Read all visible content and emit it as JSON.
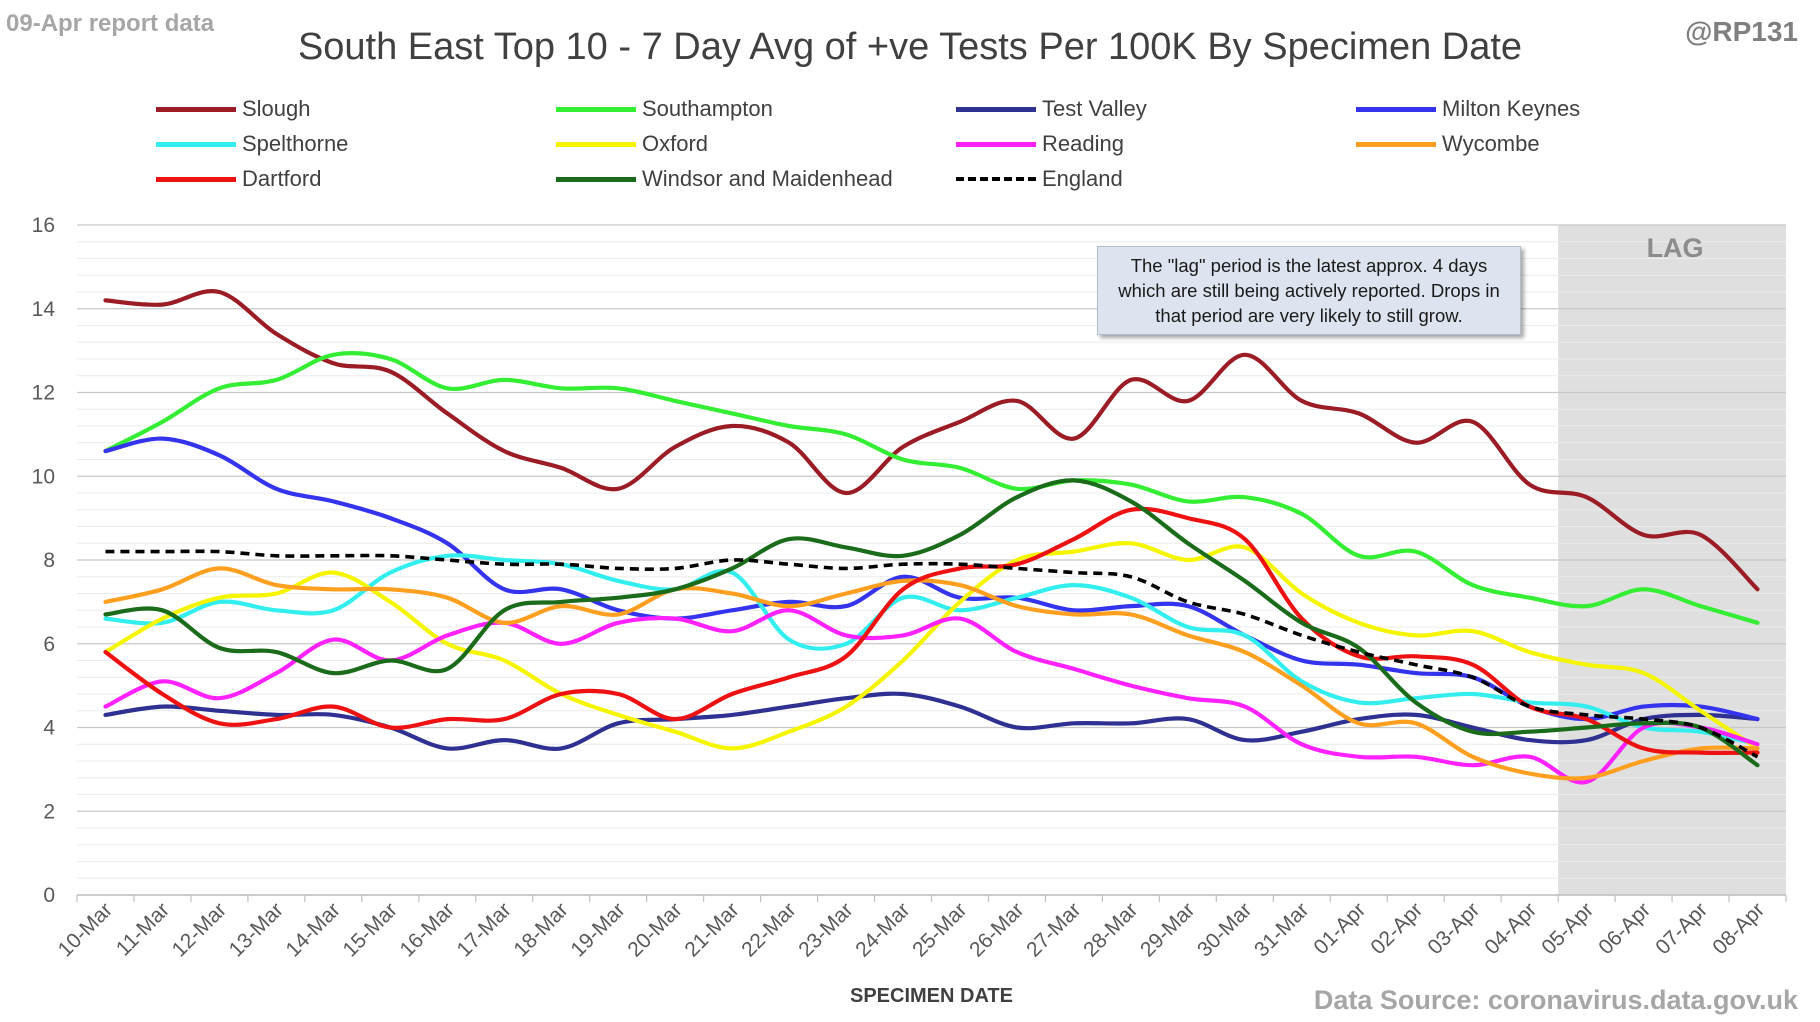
{
  "header": {
    "report_label": "09-Apr report data",
    "handle": "@RP131",
    "source": "Data Source: coronavirus.data.gov.uk"
  },
  "annotation": "The \"lag\" period is the latest approx. 4 days which are still being actively reported.  Drops in that period are very likely to still grow.",
  "chart_data": {
    "type": "line",
    "title": "South East Top 10 - 7 Day Avg of +ve Tests Per 100K By Specimen Date",
    "xlabel": "SPECIMEN DATE",
    "ylabel": "",
    "ylim": [
      0,
      16
    ],
    "yticks": [
      0,
      2,
      4,
      6,
      8,
      10,
      12,
      14,
      16
    ],
    "grid": true,
    "legend_position": "top",
    "lag_band": {
      "label": "LAG",
      "from": "05-Apr",
      "to": "08-Apr"
    },
    "x": [
      "10-Mar",
      "11-Mar",
      "12-Mar",
      "13-Mar",
      "14-Mar",
      "15-Mar",
      "16-Mar",
      "17-Mar",
      "18-Mar",
      "19-Mar",
      "20-Mar",
      "21-Mar",
      "22-Mar",
      "23-Mar",
      "24-Mar",
      "25-Mar",
      "26-Mar",
      "27-Mar",
      "28-Mar",
      "29-Mar",
      "30-Mar",
      "31-Mar",
      "01-Apr",
      "02-Apr",
      "03-Apr",
      "04-Apr",
      "05-Apr",
      "06-Apr",
      "07-Apr",
      "08-Apr"
    ],
    "series": [
      {
        "name": "Slough",
        "color": "#9b1c24",
        "dashed": false,
        "values": [
          14.2,
          14.1,
          14.4,
          13.4,
          12.7,
          12.5,
          11.5,
          10.6,
          10.2,
          9.7,
          10.7,
          11.2,
          10.8,
          9.6,
          10.7,
          11.3,
          11.8,
          10.9,
          12.3,
          11.8,
          12.9,
          11.8,
          11.5,
          10.8,
          11.3,
          9.8,
          9.5,
          8.6,
          8.6,
          7.3
        ]
      },
      {
        "name": "Southampton",
        "color": "#33ee33",
        "dashed": false,
        "values": [
          10.6,
          11.3,
          12.1,
          12.3,
          12.9,
          12.8,
          12.1,
          12.3,
          12.1,
          12.1,
          11.8,
          11.5,
          11.2,
          11.0,
          10.4,
          10.2,
          9.7,
          9.9,
          9.8,
          9.4,
          9.5,
          9.1,
          8.1,
          8.2,
          7.4,
          7.1,
          6.9,
          7.3,
          6.9,
          6.5
        ]
      },
      {
        "name": "Test Valley",
        "color": "#2e3192",
        "dashed": false,
        "values": [
          4.3,
          4.5,
          4.4,
          4.3,
          4.3,
          4.0,
          3.5,
          3.7,
          3.5,
          4.1,
          4.2,
          4.3,
          4.5,
          4.7,
          4.8,
          4.5,
          4.0,
          4.1,
          4.1,
          4.2,
          3.7,
          3.9,
          4.2,
          4.3,
          4.0,
          3.7,
          3.7,
          4.2,
          4.3,
          4.2
        ]
      },
      {
        "name": "Milton Keynes",
        "color": "#3434ee",
        "dashed": false,
        "values": [
          10.6,
          10.9,
          10.5,
          9.7,
          9.4,
          9.0,
          8.4,
          7.3,
          7.3,
          6.8,
          6.6,
          6.8,
          7.0,
          6.9,
          7.6,
          7.1,
          7.1,
          6.8,
          6.9,
          6.9,
          6.2,
          5.6,
          5.5,
          5.3,
          5.2,
          4.5,
          4.2,
          4.5,
          4.5,
          4.2
        ]
      },
      {
        "name": "Spelthorne",
        "color": "#33eeee",
        "dashed": false,
        "values": [
          6.6,
          6.5,
          7.0,
          6.8,
          6.8,
          7.7,
          8.1,
          8.0,
          7.9,
          7.5,
          7.3,
          7.7,
          6.1,
          6.0,
          7.1,
          6.8,
          7.1,
          7.4,
          7.1,
          6.4,
          6.2,
          5.1,
          4.6,
          4.7,
          4.8,
          4.6,
          4.5,
          4.0,
          3.9,
          3.6
        ]
      },
      {
        "name": "Oxford",
        "color": "#f5f500",
        "dashed": false,
        "values": [
          5.8,
          6.6,
          7.1,
          7.2,
          7.7,
          7.0,
          6.0,
          5.6,
          4.8,
          4.3,
          3.9,
          3.5,
          3.9,
          4.5,
          5.6,
          7.0,
          8.0,
          8.2,
          8.4,
          8.0,
          8.3,
          7.2,
          6.5,
          6.2,
          6.3,
          5.8,
          5.5,
          5.3,
          4.4,
          3.5
        ]
      },
      {
        "name": "Reading",
        "color": "#ff22ff",
        "dashed": false,
        "values": [
          4.5,
          5.1,
          4.7,
          5.3,
          6.1,
          5.6,
          6.2,
          6.5,
          6.0,
          6.5,
          6.6,
          6.3,
          6.8,
          6.2,
          6.2,
          6.6,
          5.8,
          5.4,
          5.0,
          4.7,
          4.5,
          3.6,
          3.3,
          3.3,
          3.1,
          3.3,
          2.7,
          4.0,
          4.0,
          3.6
        ]
      },
      {
        "name": "Wycombe",
        "color": "#ff9f20",
        "dashed": false,
        "values": [
          7.0,
          7.3,
          7.8,
          7.4,
          7.3,
          7.3,
          7.1,
          6.5,
          6.9,
          6.7,
          7.3,
          7.2,
          6.9,
          7.2,
          7.5,
          7.4,
          6.9,
          6.7,
          6.7,
          6.2,
          5.8,
          5.0,
          4.1,
          4.1,
          3.3,
          2.9,
          2.8,
          3.2,
          3.5,
          3.5
        ]
      },
      {
        "name": "Dartford",
        "color": "#ee1111",
        "dashed": false,
        "values": [
          5.8,
          4.8,
          4.1,
          4.2,
          4.5,
          4.0,
          4.2,
          4.2,
          4.8,
          4.8,
          4.2,
          4.8,
          5.2,
          5.7,
          7.3,
          7.8,
          7.9,
          8.5,
          9.2,
          9.0,
          8.5,
          6.6,
          5.7,
          5.7,
          5.5,
          4.5,
          4.2,
          3.5,
          3.4,
          3.4
        ]
      },
      {
        "name": "Windsor and Maidenhead",
        "color": "#1a6b1a",
        "dashed": false,
        "values": [
          6.7,
          6.8,
          5.9,
          5.8,
          5.3,
          5.6,
          5.4,
          6.8,
          7.0,
          7.1,
          7.3,
          7.8,
          8.5,
          8.3,
          8.1,
          8.6,
          9.5,
          9.9,
          9.4,
          8.4,
          7.5,
          6.5,
          5.9,
          4.6,
          3.9,
          3.9,
          4.0,
          4.1,
          4.0,
          3.1
        ]
      },
      {
        "name": "England",
        "color": "#000000",
        "dashed": true,
        "values": [
          8.2,
          8.2,
          8.2,
          8.1,
          8.1,
          8.1,
          8.0,
          7.9,
          7.9,
          7.8,
          7.8,
          8.0,
          7.9,
          7.8,
          7.9,
          7.9,
          7.8,
          7.7,
          7.6,
          7.0,
          6.7,
          6.2,
          5.8,
          5.5,
          5.2,
          4.5,
          4.3,
          4.2,
          4.0,
          3.3
        ]
      }
    ]
  }
}
